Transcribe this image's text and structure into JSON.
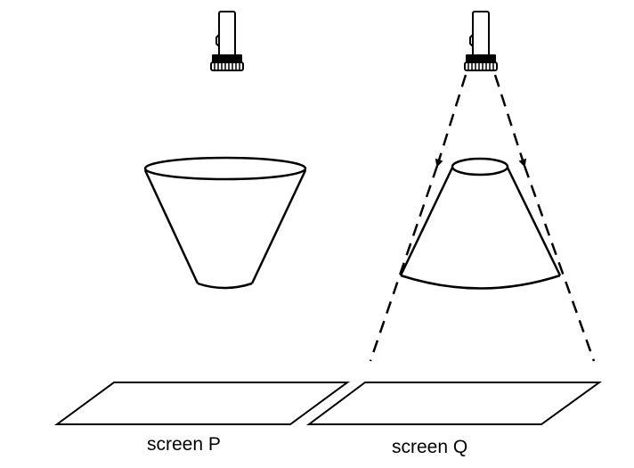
{
  "labels": {
    "screen_p": "screen P",
    "screen_q": "screen Q"
  },
  "colors": {
    "stroke": "#000000",
    "background": "#ffffff"
  },
  "icons": {
    "light_source": "flashlight-icon"
  }
}
